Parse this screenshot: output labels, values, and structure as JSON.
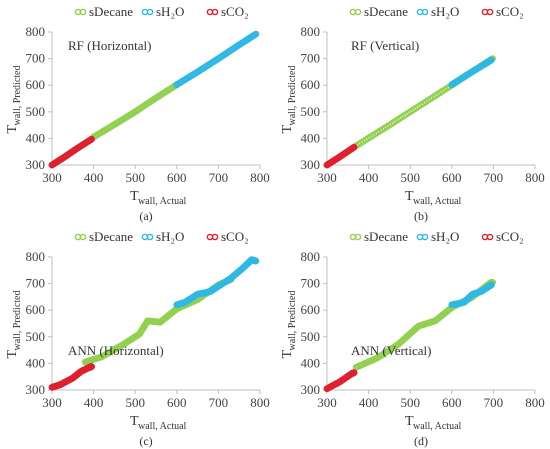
{
  "colors": {
    "sDecane": "#92d050",
    "sH2O": "#2eb8e6",
    "sCO2": "#e0202f",
    "axis": "#bfbfbf"
  },
  "chart_data": [
    {
      "panel": "(a)",
      "type": "scatter",
      "annotation": "RF (Horizontal)",
      "xlabel_main": "T",
      "xlabel_sub": "wall, Actual",
      "ylabel_main": "T",
      "ylabel_sub": "wall, Predicted",
      "xlim": [
        300,
        800
      ],
      "ylim": [
        300,
        800
      ],
      "xticks": [
        300,
        400,
        500,
        600,
        700,
        800
      ],
      "yticks": [
        300,
        400,
        500,
        600,
        700,
        800
      ],
      "legend": [
        "sDecane",
        "sH₂O",
        "sCO₂"
      ],
      "series": [
        {
          "name": "sDecane",
          "points": [
            [
              400,
              405
            ],
            [
              450,
              452
            ],
            [
              500,
              500
            ],
            [
              550,
              552
            ],
            [
              600,
              602
            ]
          ]
        },
        {
          "name": "sH₂O",
          "points": [
            [
              600,
              602
            ],
            [
              650,
              650
            ],
            [
              700,
              700
            ],
            [
              750,
              752
            ],
            [
              790,
              792
            ]
          ]
        },
        {
          "name": "sCO₂",
          "points": [
            [
              300,
              300
            ],
            [
              330,
              330
            ],
            [
              360,
              362
            ],
            [
              395,
              397
            ]
          ]
        }
      ]
    },
    {
      "panel": "(b)",
      "type": "scatter",
      "annotation": "RF (Vertical)",
      "xlabel_main": "T",
      "xlabel_sub": "wall, Actual",
      "ylabel_main": "T",
      "ylabel_sub": "wall, Predicted",
      "xlim": [
        300,
        800
      ],
      "ylim": [
        300,
        800
      ],
      "xticks": [
        300,
        400,
        500,
        600,
        700,
        800
      ],
      "yticks": [
        300,
        400,
        500,
        600,
        700,
        800
      ],
      "legend": [
        "sDecane",
        "sH₂O",
        "sCO₂"
      ],
      "series": [
        {
          "name": "sDecane",
          "points": [
            [
              370,
              372
            ],
            [
              450,
              450
            ],
            [
              520,
              520
            ],
            [
              600,
              600
            ],
            [
              650,
              652
            ],
            [
              698,
              700
            ]
          ]
        },
        {
          "name": "sH₂O",
          "points": [
            [
              600,
              602
            ],
            [
              640,
              642
            ],
            [
              680,
              680
            ],
            [
              695,
              695
            ]
          ]
        },
        {
          "name": "sCO₂",
          "points": [
            [
              300,
              300
            ],
            [
              330,
              330
            ],
            [
              365,
              367
            ]
          ]
        }
      ]
    },
    {
      "panel": "(c)",
      "type": "scatter",
      "annotation": "ANN (Horizontal)",
      "xlabel_main": "T",
      "xlabel_sub": "wall, Actual",
      "ylabel_main": "T",
      "ylabel_sub": "wall, Predicted",
      "xlim": [
        300,
        800
      ],
      "ylim": [
        300,
        800
      ],
      "xticks": [
        300,
        400,
        500,
        600,
        700,
        800
      ],
      "yticks": [
        300,
        400,
        500,
        600,
        700,
        800
      ],
      "legend": [
        "sDecane",
        "sH₂O",
        "sCO₂"
      ],
      "series": [
        {
          "name": "sDecane",
          "points": [
            [
              380,
              405
            ],
            [
              420,
              425
            ],
            [
              470,
              470
            ],
            [
              510,
              510
            ],
            [
              530,
              560
            ],
            [
              560,
              555
            ],
            [
              600,
              605
            ],
            [
              650,
              640
            ],
            [
              700,
              695
            ],
            [
              730,
              715
            ]
          ]
        },
        {
          "name": "sH₂O",
          "points": [
            [
              600,
              620
            ],
            [
              620,
              630
            ],
            [
              650,
              660
            ],
            [
              680,
              670
            ],
            [
              700,
              690
            ],
            [
              730,
              720
            ],
            [
              760,
              760
            ],
            [
              780,
              790
            ],
            [
              790,
              785
            ]
          ]
        },
        {
          "name": "sCO₂",
          "points": [
            [
              300,
              310
            ],
            [
              320,
              320
            ],
            [
              350,
              345
            ],
            [
              370,
              370
            ],
            [
              390,
              385
            ],
            [
              395,
              388
            ]
          ]
        }
      ]
    },
    {
      "panel": "(d)",
      "type": "scatter",
      "annotation": "ANN (Vertical)",
      "xlabel_main": "T",
      "xlabel_sub": "wall, Actual",
      "ylabel_main": "T",
      "ylabel_sub": "wall, Predicted",
      "xlim": [
        300,
        800
      ],
      "ylim": [
        300,
        800
      ],
      "xticks": [
        300,
        400,
        500,
        600,
        700,
        800
      ],
      "yticks": [
        300,
        400,
        500,
        600,
        700,
        800
      ],
      "legend": [
        "sDecane",
        "sH₂O",
        "sCO₂"
      ],
      "series": [
        {
          "name": "sDecane",
          "points": [
            [
              370,
              385
            ],
            [
              420,
              420
            ],
            [
              470,
              470
            ],
            [
              520,
              540
            ],
            [
              560,
              560
            ],
            [
              600,
              610
            ],
            [
              650,
              650
            ],
            [
              690,
              700
            ],
            [
              698,
              705
            ]
          ]
        },
        {
          "name": "sH₂O",
          "points": [
            [
              600,
              620
            ],
            [
              630,
              630
            ],
            [
              650,
              660
            ],
            [
              670,
              670
            ],
            [
              690,
              690
            ],
            [
              695,
              695
            ]
          ]
        },
        {
          "name": "sCO₂",
          "points": [
            [
              300,
              305
            ],
            [
              330,
              330
            ],
            [
              360,
              362
            ],
            [
              365,
              365
            ]
          ]
        }
      ]
    }
  ]
}
